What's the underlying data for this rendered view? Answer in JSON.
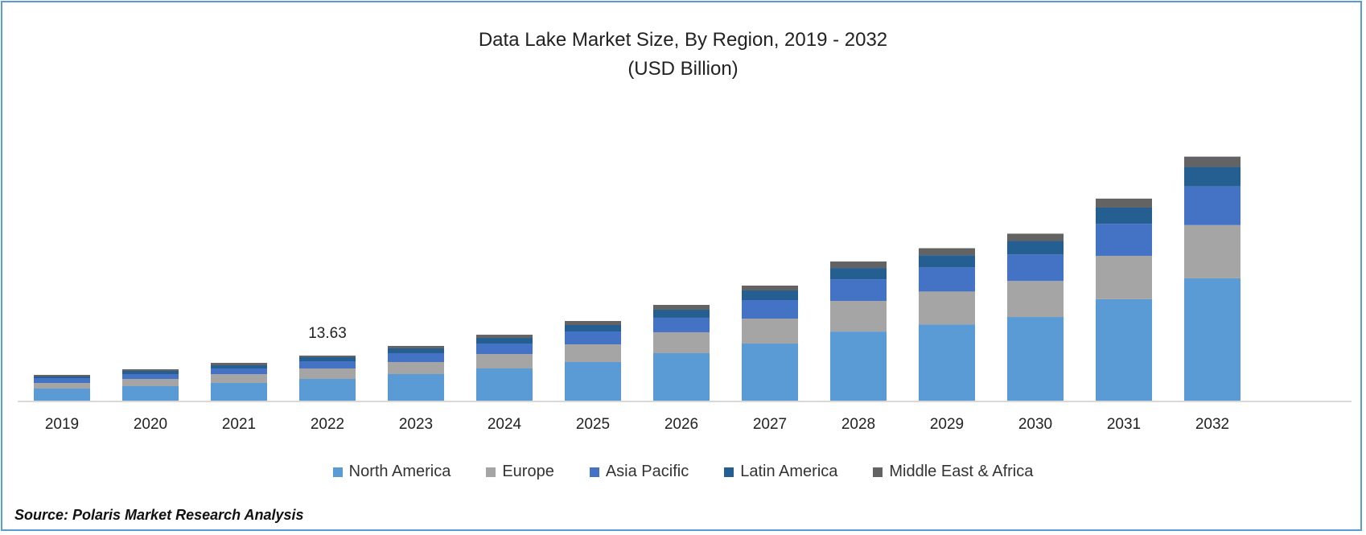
{
  "chart_data": {
    "type": "bar",
    "stacked": true,
    "title": "Data Lake Market Size, By Region, 2019 - 2032",
    "subtitle": "(USD Billion)",
    "categories": [
      "2019",
      "2020",
      "2021",
      "2022",
      "2023",
      "2024",
      "2025",
      "2026",
      "2027",
      "2028",
      "2029",
      "2030",
      "2031",
      "2032"
    ],
    "series": [
      {
        "name": "North America",
        "color": "#5B9BD5",
        "values": [
          3.65,
          4.38,
          5.35,
          6.57,
          8.03,
          9.73,
          11.68,
          14.36,
          17.27,
          20.9,
          23.0,
          25.3,
          30.7,
          37.0
        ]
      },
      {
        "name": "Europe",
        "color": "#A5A5A5",
        "values": [
          1.7,
          2.19,
          2.68,
          3.16,
          3.65,
          4.38,
          5.35,
          6.33,
          7.54,
          9.25,
          10.0,
          10.9,
          13.1,
          16.1
        ]
      },
      {
        "name": "Asia Pacific",
        "color": "#4472C4",
        "values": [
          1.46,
          1.46,
          1.7,
          2.19,
          2.68,
          3.16,
          3.89,
          4.38,
          5.6,
          6.57,
          7.3,
          8.0,
          9.7,
          11.7
        ]
      },
      {
        "name": "Latin America",
        "color": "#255E91",
        "values": [
          0.49,
          0.97,
          0.97,
          1.22,
          1.46,
          1.7,
          1.95,
          2.43,
          2.92,
          3.41,
          3.7,
          4.1,
          4.9,
          5.9
        ]
      },
      {
        "name": "Middle East & Africa",
        "color": "#636363",
        "values": [
          0.49,
          0.49,
          0.73,
          0.49,
          0.73,
          0.97,
          1.22,
          1.46,
          1.46,
          1.95,
          2.1,
          2.2,
          2.7,
          3.1
        ]
      }
    ],
    "annotations": [
      {
        "category": "2022",
        "text": "13.63"
      }
    ],
    "ylim": [
      0,
      80
    ],
    "grid": false,
    "legend_position": "bottom"
  },
  "source": "Source: Polaris Market Research Analysis"
}
